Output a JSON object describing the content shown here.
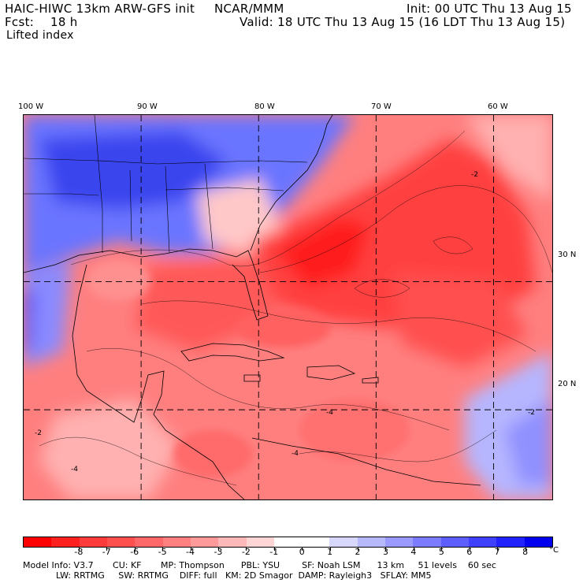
{
  "header": {
    "model": "HAIC-HIWC 13km ARW-GFS init",
    "org": "NCAR/MMM",
    "init": "Init: 00 UTC Thu 13 Aug 15",
    "fcst_label": "Fcst:",
    "fcst_value": "18 h",
    "valid": "Valid: 18 UTC Thu 13 Aug 15 (16 LDT Thu 13 Aug 15)",
    "field": "Lifted index"
  },
  "lon_labels": [
    "100 W",
    "90 W",
    "80 W",
    "70 W",
    "60 W"
  ],
  "lat_labels": [
    "30 N",
    "20 N"
  ],
  "colorbar": {
    "colors": [
      "#ff0000",
      "#ff2020",
      "#ff3c3c",
      "#ff5050",
      "#ff6868",
      "#ff8080",
      "#ff9a9a",
      "#ffb8b8",
      "#ffd6d6",
      "#ffffff",
      "#ffffff",
      "#d8d8ff",
      "#b8b8ff",
      "#9a9aff",
      "#7c7cff",
      "#5e5eff",
      "#4040ff",
      "#2222ff",
      "#0000ee"
    ],
    "tick_labels": [
      "-8",
      "-7",
      "-6",
      "-5",
      "-4",
      "-3",
      "-2",
      "-1",
      "0",
      "1",
      "2",
      "3",
      "4",
      "5",
      "6",
      "7",
      "8"
    ],
    "unit": "°C"
  },
  "footer": {
    "line1": "Model Info: V3.7       CU: KF       MP: Thompson      PBL: YSU        SF: Noah LSM      13 km     51 levels    60 sec",
    "line2": "            LW: RRTMG     SW: RRTMG    DIFF: full   KM: 2D Smagor  DAMP: Rayleigh3   SFLAY: MM5"
  },
  "map_data": {
    "lon_range": [
      -100,
      -55
    ],
    "lat_range": [
      13,
      43
    ],
    "grid_lons": [
      -90,
      -80,
      -70,
      -60
    ],
    "grid_lats": [
      20,
      30
    ],
    "contour_labels": [
      "-2",
      "-4",
      "-2",
      "-4",
      "-4",
      "-2"
    ]
  }
}
